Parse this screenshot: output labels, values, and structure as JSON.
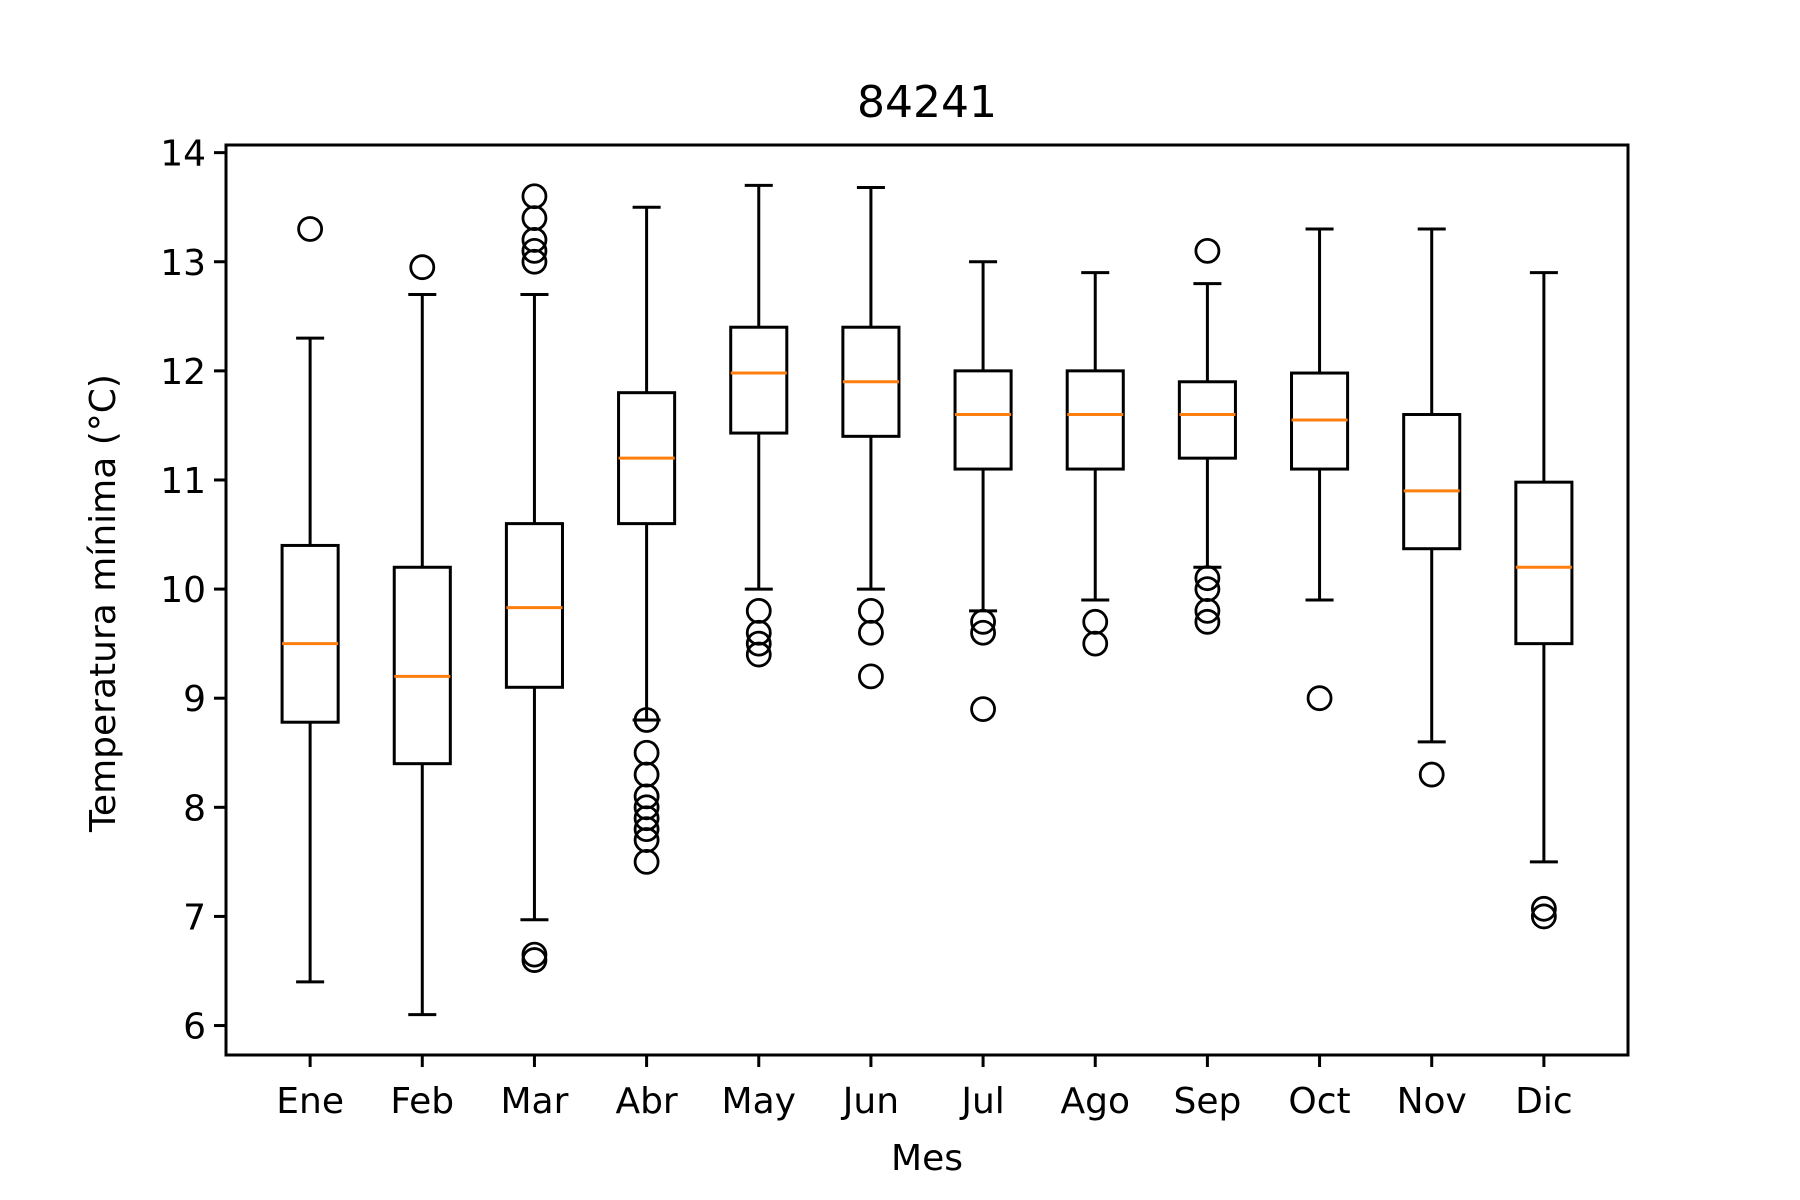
{
  "chart_data": {
    "type": "boxplot",
    "title": "84241",
    "xlabel": "Mes",
    "ylabel": "Temperatura mínima (°C)",
    "ylim": [
      5.73,
      14.07
    ],
    "yticks": [
      6,
      7,
      8,
      9,
      10,
      11,
      12,
      13,
      14
    ],
    "grid": false,
    "categories": [
      "Ene",
      "Feb",
      "Mar",
      "Abr",
      "May",
      "Jun",
      "Jul",
      "Ago",
      "Sep",
      "Oct",
      "Nov",
      "Dic"
    ],
    "boxes": [
      {
        "whislo": 6.4,
        "q1": 8.78,
        "med": 9.5,
        "q3": 10.4,
        "whishi": 12.3,
        "fliers": [
          13.3
        ]
      },
      {
        "whislo": 6.1,
        "q1": 8.4,
        "med": 9.2,
        "q3": 10.2,
        "whishi": 12.7,
        "fliers": [
          12.95
        ]
      },
      {
        "whislo": 6.97,
        "q1": 9.1,
        "med": 9.83,
        "q3": 10.6,
        "whishi": 12.7,
        "fliers": [
          6.6,
          6.65,
          13.0,
          13.1,
          13.2,
          13.4,
          13.6
        ]
      },
      {
        "whislo": 8.8,
        "q1": 10.6,
        "med": 11.2,
        "q3": 11.8,
        "whishi": 13.5,
        "fliers": [
          7.5,
          7.7,
          7.8,
          7.9,
          8.0,
          8.1,
          8.3,
          8.5,
          8.8
        ]
      },
      {
        "whislo": 10.0,
        "q1": 11.43,
        "med": 11.98,
        "q3": 12.4,
        "whishi": 13.7,
        "fliers": [
          9.4,
          9.5,
          9.6,
          9.8
        ]
      },
      {
        "whislo": 10.0,
        "q1": 11.4,
        "med": 11.9,
        "q3": 12.4,
        "whishi": 13.68,
        "fliers": [
          9.2,
          9.6,
          9.8
        ]
      },
      {
        "whislo": 9.8,
        "q1": 11.1,
        "med": 11.6,
        "q3": 12.0,
        "whishi": 13.0,
        "fliers": [
          8.9,
          9.6,
          9.7
        ]
      },
      {
        "whislo": 9.9,
        "q1": 11.1,
        "med": 11.6,
        "q3": 12.0,
        "whishi": 12.9,
        "fliers": [
          9.5,
          9.7
        ]
      },
      {
        "whislo": 10.2,
        "q1": 11.2,
        "med": 11.6,
        "q3": 11.9,
        "whishi": 12.8,
        "fliers": [
          9.7,
          9.8,
          10.0,
          10.1,
          13.1
        ]
      },
      {
        "whislo": 9.9,
        "q1": 11.1,
        "med": 11.55,
        "q3": 11.98,
        "whishi": 13.3,
        "fliers": [
          9.0
        ]
      },
      {
        "whislo": 8.6,
        "q1": 10.37,
        "med": 10.9,
        "q3": 11.6,
        "whishi": 13.3,
        "fliers": [
          8.3
        ]
      },
      {
        "whislo": 7.5,
        "q1": 9.5,
        "med": 10.2,
        "q3": 10.98,
        "whishi": 12.9,
        "fliers": [
          7.0,
          7.07
        ]
      }
    ],
    "colors": {
      "box": "#000000",
      "median": "#ff7f0e",
      "flier": "#000000",
      "background": "#ffffff"
    }
  }
}
